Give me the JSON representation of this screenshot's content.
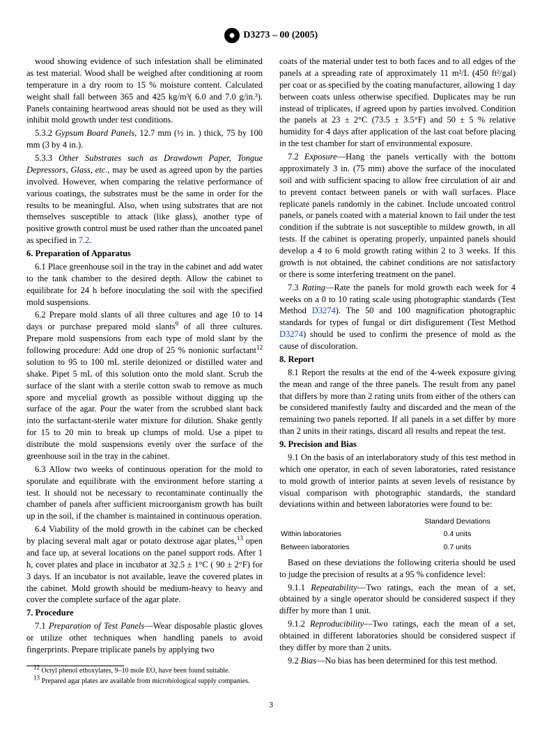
{
  "header": {
    "designation": "D3273 – 00  (2005)"
  },
  "col": {
    "p1": "wood showing evidence of such infestation shall be eliminated as test material. Wood shall be weighed after conditioning at room temperature in a dry room to 15 % moisture content. Calculated weight shall fall between 365 and 425 kg/m³( 6.0 and 7.0 g/in.³). Panels containing heartwood areas should not be used as they will inhibit mold growth under test conditions.",
    "p2a": "5.3.2 ",
    "p2i": "Gypsum Board Panels",
    "p2b": ", 12.7 mm (½ in. ) thick, 75 by 100 mm (3 by 4 in.).",
    "p3a": "5.3.3 ",
    "p3i": "Other Substrates such as Drawdown Paper, Tongue Depressors, Glass, etc.",
    "p3b": ", may be used as agreed upon by the parties involved. However, when comparing the relative performance of various coatings, the substrates must be the same in order for the results to be meaningful. Also, when using substrates that are not themselves susceptible to attack (like glass), another type of positive growth control must be used rather than the uncoated panel as specified in ",
    "p3link": "7.2",
    "p3c": ".",
    "h6": "6. Preparation of Apparatus",
    "p61": "6.1 Place greenhouse soil in the tray in the cabinet and add water to the tank chamber to the desired depth. Allow the cabinet to equilibrate for 24 h before inoculating the soil with the specified mold suspensions.",
    "p62a": "6.2 Prepare mold slants of all three cultures and age 10 to 14 days or purchase prepared mold slants",
    "p62sup": "9",
    "p62b": " of all three cultures. Prepare mold suspensions from each type of mold slant by the following procedure: Add one drop of 25 % nonionic surfactant",
    "p62sup2": "12",
    "p62c": " solution to 95 to 100 mL sterile deionized or distilled water and shake. Pipet 5 mL of this solution onto the mold slant. Scrub the surface of the slant with a sterile cotton swab to remove as much spore and mycelial growth as possible without digging up the surface of the agar. Pour the water from the scrubbed slant back into the surfactant-sterile water mixture for dilution. Shake gently for 15 to 20 min to break up clumps of mold. Use a pipet to distribute the mold suspensions evenly over the surface of the greenhouse soil in the tray in the cabinet.",
    "p63": "6.3 Allow two weeks of continuous operation for the mold to sporulate and equilibrate with the environment before starting a test. It should not be necessary to recontaminate continually the chamber of panels after sufficient microorganism growth has built up in the soil, if the chamber is maintained in continuous operation.",
    "p64a": "6.4 Viability of the mold growth in the cabinet can be checked by placing several malt agar or potato dextrose agar plates,",
    "p64sup": "13",
    "p64b": " open and face up, at several locations on the panel support rods. After 1 h, cover plates and place in incubator at 32.5 ± 1°C ( 90 ± 2°F) for 3 days. If an incubator is not available, leave the covered plates in the cabinet. Mold growth should be medium-heavy to heavy and cover the complete surface of the agar plate.",
    "h7": "7. Procedure",
    "p71a": "7.1 ",
    "p71i": "Preparation of Test Panels",
    "p71b": "—Wear disposable plastic gloves or utilize other techniques when handling panels to avoid fingerprints. Prepare triplicate panels by applying two",
    "p71c": "coats of the material under test to both faces and to all edges of the panels at a spreading rate of approximately 11 m²/L (450 ft²/gal) per coat or as specified by the coating manufacturer, allowing 1 day between coats unless otherwise specified. Duplicates may be run instead of triplicates, if agreed upon by parties involved. Condition the panels at 23 ± 2°C (73.5 ± 3.5°F) and 50 ± 5 % relative humidity for 4 days after application of the last coat before placing in the test chamber for start of environmental exposure.",
    "p72a": "7.2 ",
    "p72i": "Exposure",
    "p72b": "—Hang the panels vertically with the bottom approximately 3 in. (75 mm) above the surface of the inoculated soil and with sufficient spacing to allow free circulation of air and to prevent contact between panels or with wall surfaces. Place replicate panels randomly in the cabinet. Include uncoated control panels, or panels coated with a material known to fail under the test condition if the subtrate is not susceptible to mildew growth, in all tests. If the cabinet is operating properly, unpainted panels should develop a 4 to 6 mold growth rating within 2 to 3 weeks. If this growth is not obtained, the cabinet conditions are not satisfactory or there is some interfering treatment on the panel.",
    "p73a": "7.3 ",
    "p73i": "Rating",
    "p73b": "—Rate the panels for mold growth each week for 4 weeks on a 0 to 10 rating scale using photographic standards (Test Method ",
    "p73link1": "D3274",
    "p73c": "). The 50 and 100 magnification photographic standards for types of fungal or dirt disfigurement (Test Method ",
    "p73link2": "D3274",
    "p73d": ") should be used to confirm the presence of mold as the cause of discoloration.",
    "h8": "8. Report",
    "p81": "8.1 Report the results at the end of the 4-week exposure giving the mean and range of the three panels. The result from any panel that differs by more than 2 rating units from either of the others can be considered manifestly faulty and discarded and the mean of the remaining two panels reported. If all panels in a set differ by more than 2 units in their ratings, discard all results and repeat the test.",
    "h9": "9. Precision and Bias",
    "p91": "9.1 On the basis of an interlaboratory study of this test method in which one operator, in each of seven laboratories, rated resistance to mold growth of interior paints at seven levels of resistance by visual comparison with photographic standards, the standard deviations within and between laboratories were found to be:",
    "sd_head": "Standard Deviations",
    "sd_r1a": "Within laboratories",
    "sd_r1b": "0.4 units",
    "sd_r2a": "Between laboratories",
    "sd_r2b": "0.7 units",
    "p91x": "Based on these deviations the following criteria should be used to judge the precision of results at a 95 % confidence level:",
    "p911a": "9.1.1 ",
    "p911i": "Repeatability",
    "p911b": "—Two ratings, each the mean of a set, obtained by a single operator should be considered suspect if they differ by more than 1 unit.",
    "p912a": "9.1.2 ",
    "p912i": "Reproducibility",
    "p912b": "—Two ratings, each the mean of a set, obtained in different laboratories should be considered suspect if they differ by more than 2 units.",
    "p92a": "9.2 ",
    "p92i": "Bias",
    "p92b": "—No bias has been determined for this test method."
  },
  "footnotes": {
    "f12sup": "12",
    "f12": " Octyl phenol ethoxylates, 9–10 mole EO, have been found suitable.",
    "f13sup": "13",
    "f13": " Prepared agar plates are available from microbiological supply companies."
  },
  "pagenum": "3"
}
